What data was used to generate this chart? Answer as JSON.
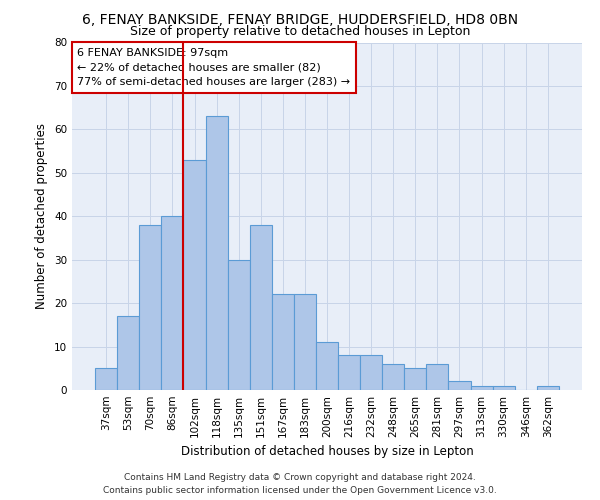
{
  "title_line1": "6, FENAY BANKSIDE, FENAY BRIDGE, HUDDERSFIELD, HD8 0BN",
  "title_line2": "Size of property relative to detached houses in Lepton",
  "xlabel": "Distribution of detached houses by size in Lepton",
  "ylabel": "Number of detached properties",
  "categories": [
    "37sqm",
    "53sqm",
    "70sqm",
    "86sqm",
    "102sqm",
    "118sqm",
    "135sqm",
    "151sqm",
    "167sqm",
    "183sqm",
    "200sqm",
    "216sqm",
    "232sqm",
    "248sqm",
    "265sqm",
    "281sqm",
    "297sqm",
    "313sqm",
    "330sqm",
    "346sqm",
    "362sqm"
  ],
  "values": [
    5,
    17,
    38,
    40,
    53,
    63,
    30,
    38,
    22,
    22,
    11,
    8,
    8,
    6,
    5,
    6,
    2,
    1,
    1,
    0,
    1
  ],
  "bar_color": "#aec6e8",
  "bar_edge_color": "#5b9bd5",
  "bar_linewidth": 0.8,
  "vline_x": 3.5,
  "vline_color": "#cc0000",
  "vline_linewidth": 1.5,
  "annotation_text": "6 FENAY BANKSIDE: 97sqm\n← 22% of detached houses are smaller (82)\n77% of semi-detached houses are larger (283) →",
  "annotation_box_color": "#cc0000",
  "annotation_bg": "#ffffff",
  "ylim": [
    0,
    80
  ],
  "yticks": [
    0,
    10,
    20,
    30,
    40,
    50,
    60,
    70,
    80
  ],
  "grid_color": "#c8d4e8",
  "bg_color": "#e8eef8",
  "footer_line1": "Contains HM Land Registry data © Crown copyright and database right 2024.",
  "footer_line2": "Contains public sector information licensed under the Open Government Licence v3.0.",
  "title_fontsize": 10,
  "subtitle_fontsize": 9,
  "axis_label_fontsize": 8.5,
  "tick_fontsize": 7.5,
  "annotation_fontsize": 8,
  "footer_fontsize": 6.5
}
